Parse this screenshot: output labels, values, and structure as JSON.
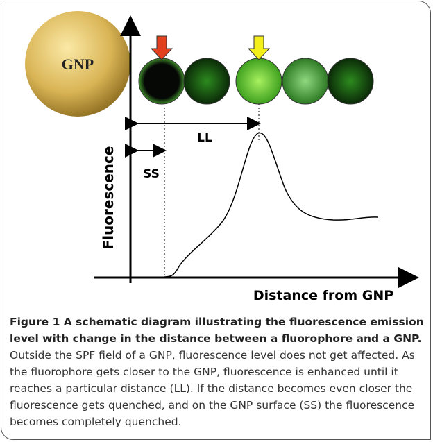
{
  "diagram": {
    "sphere_label": "GNP",
    "long_range_label": "LL",
    "short_range_label": "SS",
    "y_axis_label": "Fluorescence",
    "x_axis_label": "Distance from GNP"
  },
  "caption": {
    "title": "Figure 1 A schematic diagram illustrating the fluorescence emission level with change in the distance between a fluorophore and a GNP.",
    "text": "Outside the SPF field of a GNP, fluorescence level does not get affected. As the fluorophore gets closer to the GNP, fluorescence is enhanced until it reaches a particular distance (LL). If the distance becomes even closer the fluorescence gets quenched, and on the GNP surface (SS) the fluorescence becomes completely quenched."
  }
}
